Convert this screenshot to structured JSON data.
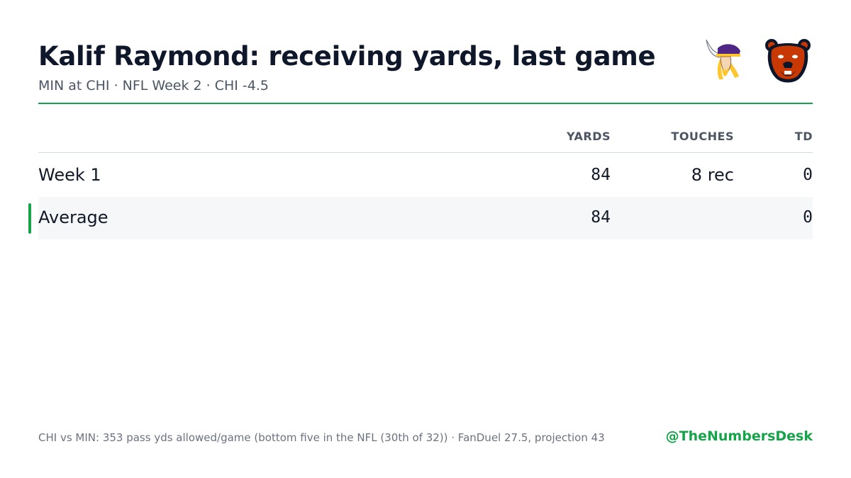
{
  "header": {
    "title": "Kalif Raymond: receiving yards, last game",
    "subtitle": "MIN at CHI · NFL Week 2 · CHI -4.5"
  },
  "logos": {
    "away": "vikings-logo",
    "home": "bears-logo"
  },
  "table": {
    "columns": [
      "YARDS",
      "TOUCHES",
      "TD"
    ],
    "rows": [
      {
        "label": "Week 1",
        "yards": "84",
        "touches": "8 rec",
        "td": "0"
      },
      {
        "label": "Average",
        "yards": "84",
        "touches": "",
        "td": "0"
      }
    ]
  },
  "footer": {
    "note": "CHI vs MIN: 353 pass yds allowed/game (bottom five in the NFL (30th of 32)) · FanDuel 27.5, projection 43",
    "handle": "@TheNumbersDesk"
  },
  "colors": {
    "accent": "#16a34a",
    "title": "#0f172a",
    "muted": "#6b7280",
    "row_highlight": "#f6f7f9"
  }
}
